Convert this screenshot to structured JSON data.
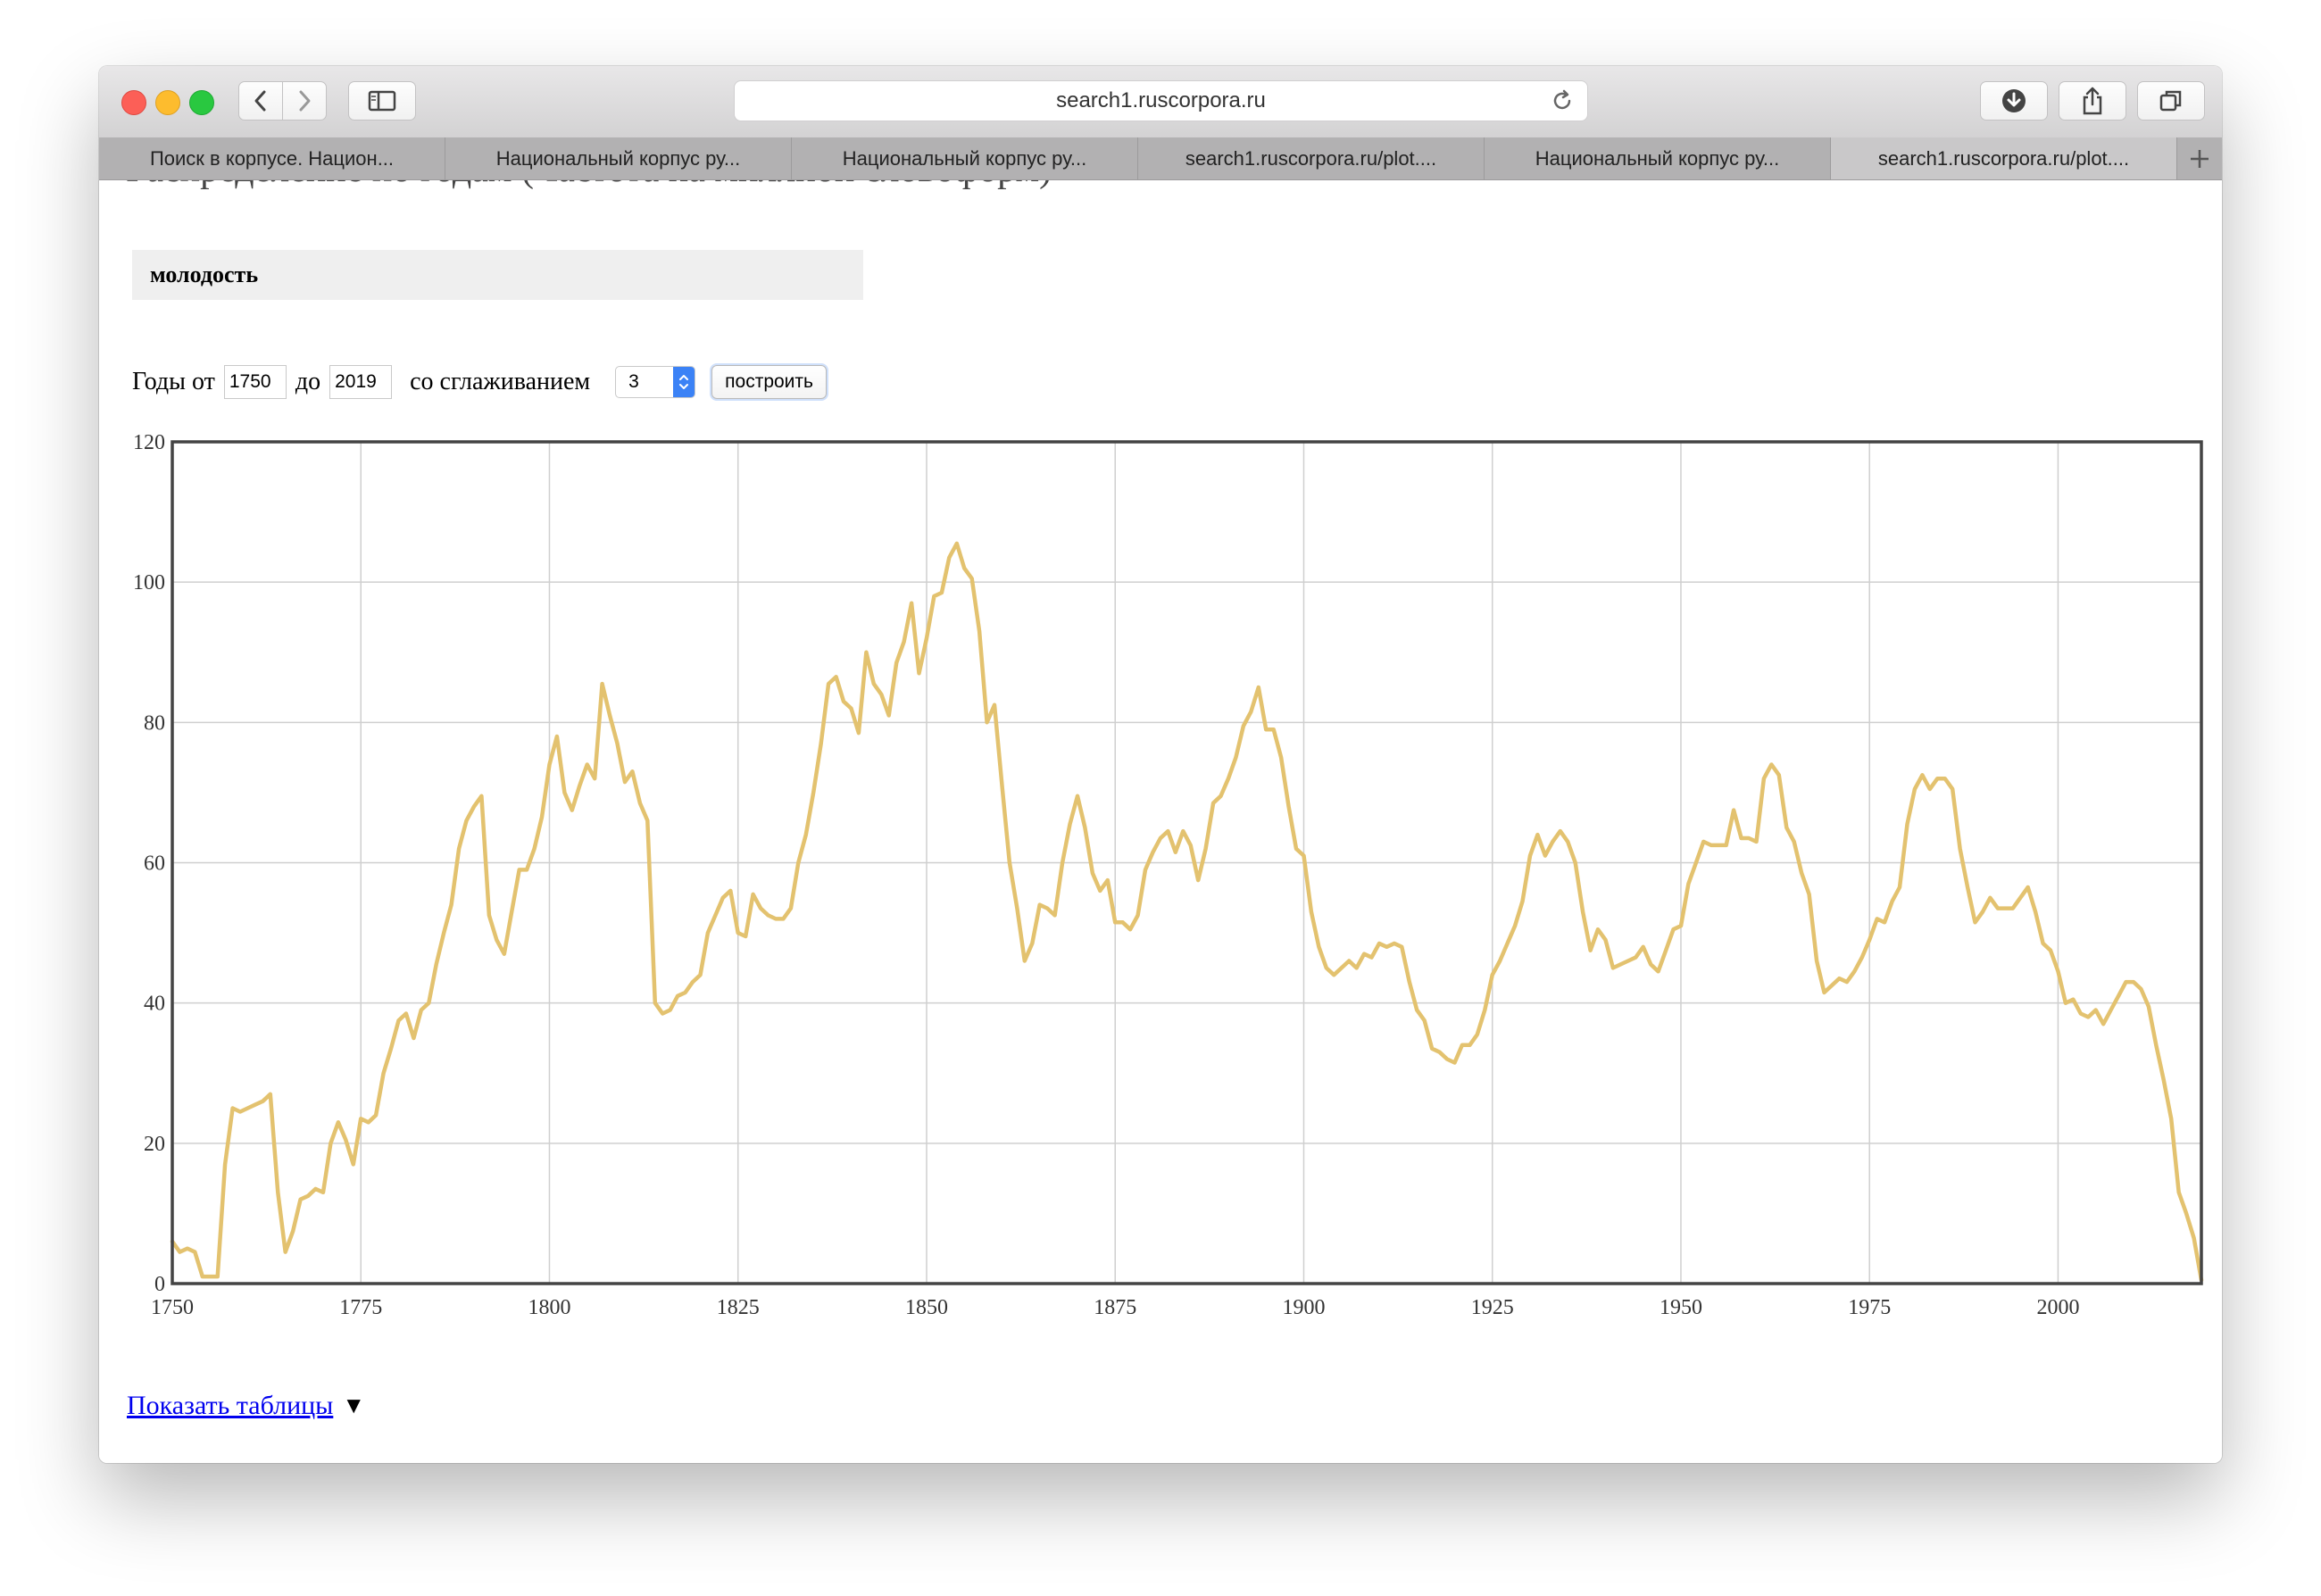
{
  "browser": {
    "url": "search1.ruscorpora.ru",
    "tabs": [
      {
        "label": "Поиск в корпусе. Национ..."
      },
      {
        "label": "Национальный корпус ру..."
      },
      {
        "label": "Национальный корпус ру..."
      },
      {
        "label": "search1.ruscorpora.ru/plot...."
      },
      {
        "label": "Национальный корпус ру..."
      },
      {
        "label": "search1.ruscorpora.ru/plot...."
      }
    ],
    "active_tab": 5,
    "icons": [
      "back-icon",
      "forward-icon",
      "sidebar-icon",
      "reload-icon",
      "download-icon",
      "share-icon",
      "tabs-overview-icon",
      "new-tab-icon"
    ]
  },
  "page": {
    "heading": "Распределение по годам (Частота на миллион словоформ)",
    "query": "молодость",
    "controls": {
      "years_from_label": "Годы от",
      "year_from": "1750",
      "to_label": "до",
      "year_to": "2019",
      "smoothing_label": "со сглаживанием",
      "smoothing_value": "3",
      "build_label": "построить"
    },
    "show_tables": "Показать таблицы",
    "show_tables_arrow": "▼"
  },
  "chart_data": {
    "type": "line",
    "title": "",
    "xlabel": "",
    "ylabel": "",
    "xlim": [
      1750,
      2019
    ],
    "ylim": [
      0,
      120
    ],
    "x_ticks": [
      1750,
      1775,
      1800,
      1825,
      1850,
      1875,
      1900,
      1925,
      1950,
      1975,
      2000
    ],
    "y_ticks": [
      0,
      20,
      40,
      60,
      80,
      100,
      120
    ],
    "grid": true,
    "line_color": "#e3c26f",
    "series": [
      {
        "name": "",
        "points": [
          [
            1750,
            6
          ],
          [
            1751,
            4.5
          ],
          [
            1752,
            5
          ],
          [
            1753,
            4.5
          ],
          [
            1754,
            1
          ],
          [
            1755,
            1
          ],
          [
            1756,
            1
          ],
          [
            1757,
            17
          ],
          [
            1758,
            25
          ],
          [
            1759,
            24.5
          ],
          [
            1760,
            25
          ],
          [
            1761,
            25.5
          ],
          [
            1762,
            26
          ],
          [
            1763,
            27
          ],
          [
            1764,
            13
          ],
          [
            1765,
            4.5
          ],
          [
            1766,
            7.5
          ],
          [
            1767,
            12
          ],
          [
            1768,
            12.5
          ],
          [
            1769,
            13.5
          ],
          [
            1770,
            13
          ],
          [
            1771,
            20
          ],
          [
            1772,
            23
          ],
          [
            1773,
            20.5
          ],
          [
            1774,
            17
          ],
          [
            1775,
            23.5
          ],
          [
            1776,
            23
          ],
          [
            1777,
            24
          ],
          [
            1778,
            30
          ],
          [
            1779,
            33.5
          ],
          [
            1780,
            37.5
          ],
          [
            1781,
            38.5
          ],
          [
            1782,
            35
          ],
          [
            1783,
            39
          ],
          [
            1784,
            40
          ],
          [
            1785,
            45.5
          ],
          [
            1786,
            50
          ],
          [
            1787,
            54
          ],
          [
            1788,
            62
          ],
          [
            1789,
            66
          ],
          [
            1790,
            68
          ],
          [
            1791,
            69.5
          ],
          [
            1792,
            52.5
          ],
          [
            1793,
            49
          ],
          [
            1794,
            47
          ],
          [
            1795,
            53
          ],
          [
            1796,
            59
          ],
          [
            1797,
            59
          ],
          [
            1798,
            62
          ],
          [
            1799,
            66.5
          ],
          [
            1800,
            74
          ],
          [
            1801,
            78
          ],
          [
            1802,
            70
          ],
          [
            1803,
            67.5
          ],
          [
            1804,
            71
          ],
          [
            1805,
            74
          ],
          [
            1806,
            72
          ],
          [
            1807,
            85.5
          ],
          [
            1808,
            81
          ],
          [
            1809,
            77
          ],
          [
            1810,
            71.5
          ],
          [
            1811,
            73
          ],
          [
            1812,
            68.5
          ],
          [
            1813,
            66
          ],
          [
            1814,
            40
          ],
          [
            1815,
            38.5
          ],
          [
            1816,
            39
          ],
          [
            1817,
            41
          ],
          [
            1818,
            41.5
          ],
          [
            1819,
            43
          ],
          [
            1820,
            44
          ],
          [
            1821,
            50
          ],
          [
            1822,
            52.5
          ],
          [
            1823,
            55
          ],
          [
            1824,
            56
          ],
          [
            1825,
            50
          ],
          [
            1826,
            49.5
          ],
          [
            1827,
            55.5
          ],
          [
            1828,
            53.5
          ],
          [
            1829,
            52.5
          ],
          [
            1830,
            52
          ],
          [
            1831,
            52
          ],
          [
            1832,
            53.5
          ],
          [
            1833,
            60
          ],
          [
            1834,
            64
          ],
          [
            1835,
            70
          ],
          [
            1836,
            77
          ],
          [
            1837,
            85.5
          ],
          [
            1838,
            86.5
          ],
          [
            1839,
            83
          ],
          [
            1840,
            82
          ],
          [
            1841,
            78.5
          ],
          [
            1842,
            90
          ],
          [
            1843,
            85.5
          ],
          [
            1844,
            84
          ],
          [
            1845,
            81
          ],
          [
            1846,
            88.5
          ],
          [
            1847,
            91.5
          ],
          [
            1848,
            97
          ],
          [
            1849,
            87
          ],
          [
            1850,
            92
          ],
          [
            1851,
            98
          ],
          [
            1852,
            98.5
          ],
          [
            1853,
            103.5
          ],
          [
            1854,
            105.5
          ],
          [
            1855,
            102
          ],
          [
            1856,
            100.5
          ],
          [
            1857,
            93
          ],
          [
            1858,
            80
          ],
          [
            1859,
            82.5
          ],
          [
            1860,
            71
          ],
          [
            1861,
            60
          ],
          [
            1862,
            53.5
          ],
          [
            1863,
            46
          ],
          [
            1864,
            48.5
          ],
          [
            1865,
            54
          ],
          [
            1866,
            53.5
          ],
          [
            1867,
            52.5
          ],
          [
            1868,
            60
          ],
          [
            1869,
            65.5
          ],
          [
            1870,
            69.5
          ],
          [
            1871,
            65
          ],
          [
            1872,
            58.5
          ],
          [
            1873,
            56
          ],
          [
            1874,
            57.5
          ],
          [
            1875,
            51.5
          ],
          [
            1876,
            51.5
          ],
          [
            1877,
            50.5
          ],
          [
            1878,
            52.5
          ],
          [
            1879,
            59
          ],
          [
            1880,
            61.5
          ],
          [
            1881,
            63.5
          ],
          [
            1882,
            64.5
          ],
          [
            1883,
            61.5
          ],
          [
            1884,
            64.5
          ],
          [
            1885,
            62.5
          ],
          [
            1886,
            57.5
          ],
          [
            1887,
            62
          ],
          [
            1888,
            68.5
          ],
          [
            1889,
            69.5
          ],
          [
            1890,
            72
          ],
          [
            1891,
            75
          ],
          [
            1892,
            79.5
          ],
          [
            1893,
            81.5
          ],
          [
            1894,
            85
          ],
          [
            1895,
            79
          ],
          [
            1896,
            79
          ],
          [
            1897,
            75
          ],
          [
            1898,
            68
          ],
          [
            1899,
            62
          ],
          [
            1900,
            61
          ],
          [
            1901,
            53
          ],
          [
            1902,
            48
          ],
          [
            1903,
            45
          ],
          [
            1904,
            44
          ],
          [
            1905,
            45
          ],
          [
            1906,
            46
          ],
          [
            1907,
            45
          ],
          [
            1908,
            47
          ],
          [
            1909,
            46.5
          ],
          [
            1910,
            48.5
          ],
          [
            1911,
            48
          ],
          [
            1912,
            48.5
          ],
          [
            1913,
            48
          ],
          [
            1914,
            43
          ],
          [
            1915,
            39
          ],
          [
            1916,
            37.5
          ],
          [
            1917,
            33.5
          ],
          [
            1918,
            33
          ],
          [
            1919,
            32
          ],
          [
            1920,
            31.5
          ],
          [
            1921,
            34
          ],
          [
            1922,
            34
          ],
          [
            1923,
            35.5
          ],
          [
            1924,
            39
          ],
          [
            1925,
            44
          ],
          [
            1926,
            46
          ],
          [
            1927,
            48.5
          ],
          [
            1928,
            51
          ],
          [
            1929,
            54.5
          ],
          [
            1930,
            61
          ],
          [
            1931,
            64
          ],
          [
            1932,
            61
          ],
          [
            1933,
            63
          ],
          [
            1934,
            64.5
          ],
          [
            1935,
            63
          ],
          [
            1936,
            60
          ],
          [
            1937,
            53
          ],
          [
            1938,
            47.5
          ],
          [
            1939,
            50.5
          ],
          [
            1940,
            49
          ],
          [
            1941,
            45
          ],
          [
            1942,
            45.5
          ],
          [
            1943,
            46
          ],
          [
            1944,
            46.5
          ],
          [
            1945,
            48
          ],
          [
            1946,
            45.5
          ],
          [
            1947,
            44.5
          ],
          [
            1948,
            47.5
          ],
          [
            1949,
            50.5
          ],
          [
            1950,
            51
          ],
          [
            1951,
            57
          ],
          [
            1952,
            60
          ],
          [
            1953,
            63
          ],
          [
            1954,
            62.5
          ],
          [
            1955,
            62.5
          ],
          [
            1956,
            62.5
          ],
          [
            1957,
            67.5
          ],
          [
            1958,
            63.5
          ],
          [
            1959,
            63.5
          ],
          [
            1960,
            63
          ],
          [
            1961,
            72
          ],
          [
            1962,
            74
          ],
          [
            1963,
            72.5
          ],
          [
            1964,
            65
          ],
          [
            1965,
            63
          ],
          [
            1966,
            58.5
          ],
          [
            1967,
            55.5
          ],
          [
            1968,
            46
          ],
          [
            1969,
            41.5
          ],
          [
            1970,
            42.5
          ],
          [
            1971,
            43.5
          ],
          [
            1972,
            43
          ],
          [
            1973,
            44.5
          ],
          [
            1974,
            46.5
          ],
          [
            1975,
            49
          ],
          [
            1976,
            52
          ],
          [
            1977,
            51.5
          ],
          [
            1978,
            54.5
          ],
          [
            1979,
            56.5
          ],
          [
            1980,
            65.5
          ],
          [
            1981,
            70.5
          ],
          [
            1982,
            72.5
          ],
          [
            1983,
            70.5
          ],
          [
            1984,
            72
          ],
          [
            1985,
            72
          ],
          [
            1986,
            70.5
          ],
          [
            1987,
            62
          ],
          [
            1988,
            56.5
          ],
          [
            1989,
            51.5
          ],
          [
            1990,
            53
          ],
          [
            1991,
            55
          ],
          [
            1992,
            53.5
          ],
          [
            1993,
            53.5
          ],
          [
            1994,
            53.5
          ],
          [
            1995,
            55
          ],
          [
            1996,
            56.5
          ],
          [
            1997,
            53
          ],
          [
            1998,
            48.5
          ],
          [
            1999,
            47.5
          ],
          [
            2000,
            44.5
          ],
          [
            2001,
            40
          ],
          [
            2002,
            40.5
          ],
          [
            2003,
            38.5
          ],
          [
            2004,
            38
          ],
          [
            2005,
            39
          ],
          [
            2006,
            37
          ],
          [
            2007,
            39
          ],
          [
            2008,
            41
          ],
          [
            2009,
            43
          ],
          [
            2010,
            43
          ],
          [
            2011,
            42
          ],
          [
            2012,
            39.5
          ],
          [
            2013,
            34
          ],
          [
            2014,
            29
          ],
          [
            2015,
            23.5
          ],
          [
            2016,
            13
          ],
          [
            2017,
            10
          ],
          [
            2018,
            6.5
          ],
          [
            2019,
            0.5
          ]
        ]
      }
    ]
  }
}
